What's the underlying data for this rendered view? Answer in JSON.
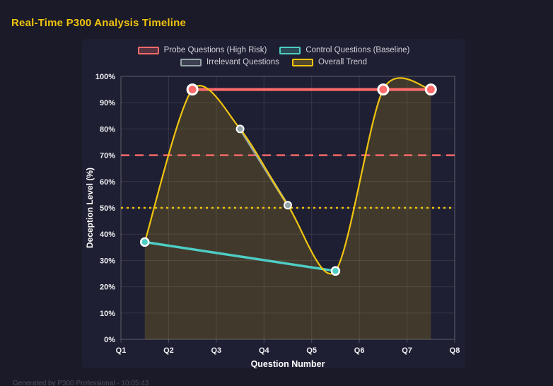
{
  "page": {
    "title": "Real-Time P300 Analysis Timeline",
    "footer": "Generated by P300 Professional - 10:05:43"
  },
  "colors": {
    "background": "#1a1a28",
    "panel": "#1f1f33",
    "title": "#f1c40f",
    "grid": "rgba(255,255,255,0.10)",
    "axis_border": "rgba(255,255,255,0.20)",
    "tick_text": "#eeeef2",
    "axis_title_text": "#ffffff",
    "legend_text": "#d2d2da",
    "footer_text": "#4e4e5e"
  },
  "chart_data": {
    "type": "line",
    "title": "Real-Time P300 Analysis Timeline",
    "xlabel": "Question Number",
    "ylabel": "Deception Level (%)",
    "x_categories": [
      "Q1",
      "Q2",
      "Q3",
      "Q4",
      "Q5",
      "Q6",
      "Q7",
      "Q8"
    ],
    "x_range": [
      1,
      8
    ],
    "ylim": [
      0,
      100
    ],
    "y_tick_step": 10,
    "y_tick_suffix": "%",
    "grid": true,
    "legend_position": "top",
    "series": [
      {
        "name": "Probe Questions (High Risk)",
        "color": "#ff6b6b",
        "swatch_fill": "rgba(255,107,107,0.25)",
        "line_width": 4,
        "point_radius": 7,
        "point_border_width": 3,
        "point_border_color": "#ffffff",
        "smooth": false,
        "fill": false,
        "points": [
          {
            "x": 2.5,
            "y": 95
          },
          {
            "x": 6.5,
            "y": 95
          },
          {
            "x": 7.5,
            "y": 95
          }
        ]
      },
      {
        "name": "Control Questions (Baseline)",
        "color": "#4ecdc4",
        "swatch_fill": "rgba(78,205,196,0.25)",
        "line_width": 3.5,
        "point_radius": 5.5,
        "point_border_width": 2.5,
        "point_border_color": "#ffffff",
        "smooth": false,
        "fill": false,
        "points": [
          {
            "x": 1.5,
            "y": 37
          },
          {
            "x": 5.5,
            "y": 26
          }
        ]
      },
      {
        "name": "Irrelevant Questions",
        "color": "#95a5a6",
        "swatch_fill": "rgba(149,165,166,0.25)",
        "line_width": 3.5,
        "point_radius": 5,
        "point_border_width": 2,
        "point_border_color": "#ffffff",
        "smooth": false,
        "fill": false,
        "points": [
          {
            "x": 3.5,
            "y": 80
          },
          {
            "x": 4.5,
            "y": 51
          }
        ]
      },
      {
        "name": "Overall Trend",
        "color": "#f1c40f",
        "swatch_fill": "rgba(241,196,15,0.25)",
        "line_width": 2.2,
        "point_radius": 0,
        "point_border_width": 0,
        "point_border_color": "#ffffff",
        "smooth": true,
        "fill": true,
        "fill_color": "rgba(241,196,15,0.16)",
        "points": [
          {
            "x": 1.5,
            "y": 37
          },
          {
            "x": 2.5,
            "y": 95
          },
          {
            "x": 3.5,
            "y": 80
          },
          {
            "x": 4.5,
            "y": 51
          },
          {
            "x": 5.5,
            "y": 26
          },
          {
            "x": 6.5,
            "y": 95
          },
          {
            "x": 7.5,
            "y": 95
          }
        ]
      }
    ],
    "thresholds": [
      {
        "y": 70,
        "color": "#ff6b6b",
        "style": "dashed"
      },
      {
        "y": 50,
        "color": "#f1c40f",
        "style": "dotted"
      }
    ]
  }
}
